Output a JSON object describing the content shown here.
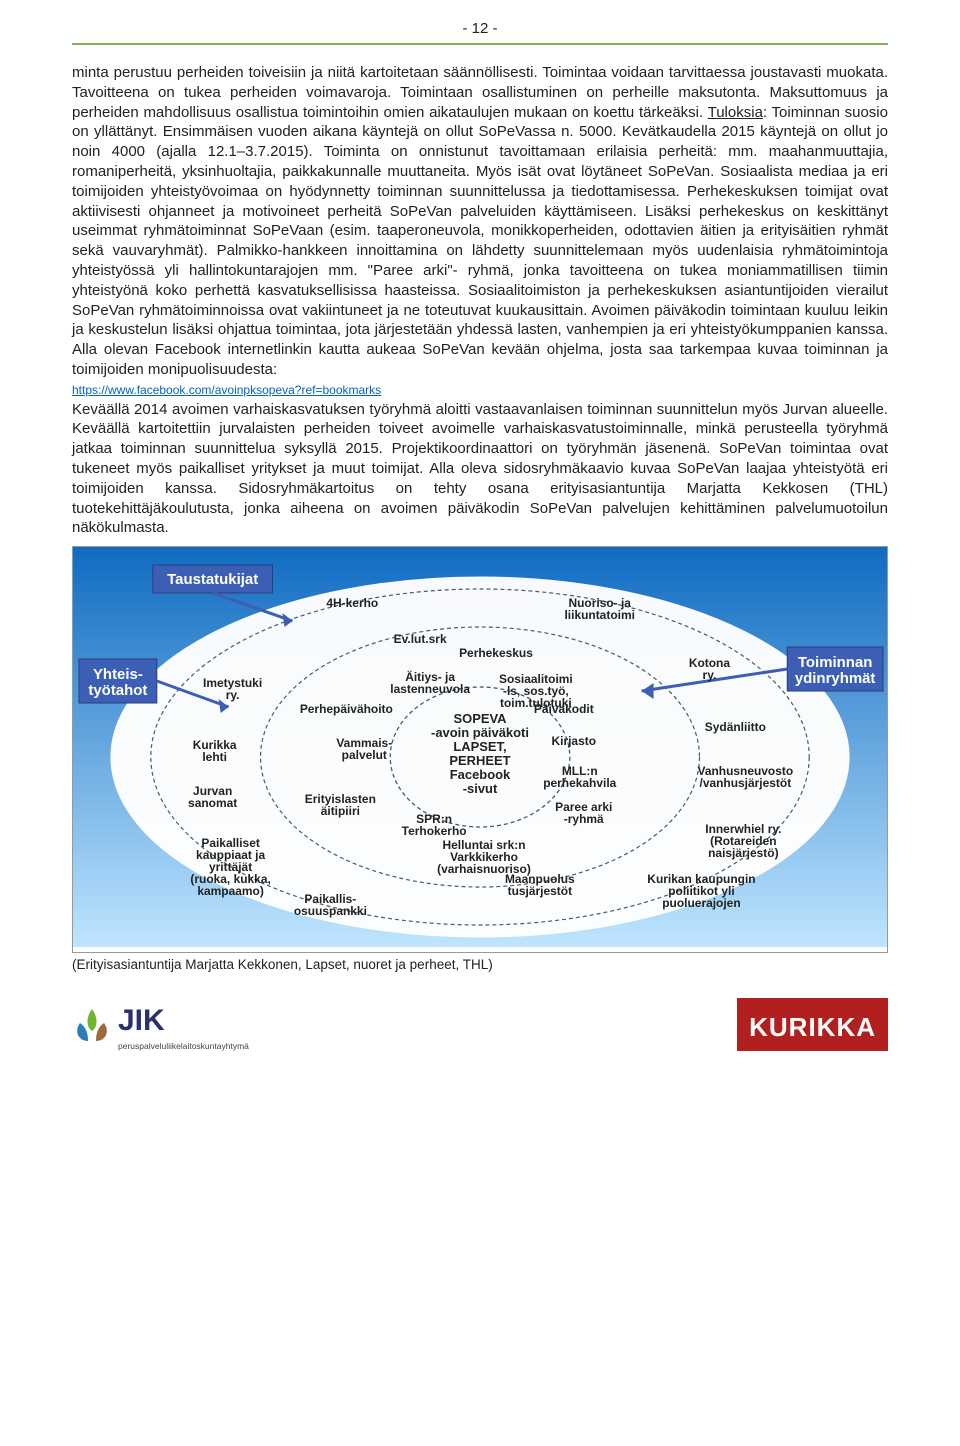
{
  "page_number": "- 12 -",
  "hr_color": "#7fb24a",
  "paragraph1": "minta perustuu perheiden toiveisiin ja niitä kartoitetaan säännöllisesti. Toimintaa voidaan tarvittaessa joustavasti muokata. Tavoitteena on tukea perheiden voimavaroja. Toimintaan osallistuminen on perheille maksutonta. Maksuttomuus ja perheiden mahdollisuus osallistua toimintoihin omien aikataulujen mukaan on koettu tärkeäksi. ",
  "tuloksia_label": "Tuloksia",
  "paragraph1b": ": Toiminnan suosio on yllättänyt. Ensimmäisen vuoden aikana käyntejä on ollut SoPeVassa n. 5000. Kevätkaudella 2015 käyntejä on ollut jo noin 4000 (ajalla 12.1–3.7.2015). Toiminta on onnistunut tavoittamaan erilaisia perheitä: mm. maahanmuuttajia, romaniperheitä, yksinhuoltajia, paikkakunnalle muuttaneita. Myös isät ovat löytäneet SoPeVan. Sosiaalista mediaa ja eri toimijoiden yhteistyövoimaa on hyödynnetty toiminnan suunnittelussa ja tiedottamisessa. Perhekeskuksen toimijat ovat aktiivisesti ohjanneet ja motivoineet perheitä SoPeVan palveluiden käyttämiseen. Lisäksi perhekeskus on keskittänyt useimmat ryhmätoiminnat SoPeVaan (esim. taaperoneuvola, monikkoperheiden, odottavien äitien ja erityisäitien ryhmät sekä vauvaryhmät).  Palmikko-hankkeen innoittamina on lähdetty suunnittelemaan myös uudenlaisia ryhmätoimintoja yhteistyössä yli hallintokuntarajojen mm. \"Paree arki\"- ryhmä, jonka tavoitteena on tukea moniammatillisen tiimin yhteistyönä koko perhettä kasvatuksellisissa haasteissa. Sosiaalitoimiston ja perhekeskuksen asiantuntijoiden vierailut SoPeVan ryhmätoiminnoissa ovat vakiintuneet ja ne toteutuvat kuukausittain. Avoimen päiväkodin toimintaan kuuluu leikin ja keskustelun lisäksi ohjattua toimintaa, jota järjestetään yhdessä lasten, vanhempien ja eri yhteistyökumppanien kanssa. Alla olevan Facebook internetlinkin kautta aukeaa SoPeVan kevään ohjelma, josta saa tarkempaa kuvaa toiminnan ja toimijoiden monipuolisuudesta:",
  "link_text": "https://www.facebook.com/avoinpksopeva?ref=bookmarks",
  "paragraph2": "Keväällä 2014 avoimen varhaiskasvatuksen työryhmä aloitti vastaavanlaisen toiminnan suunnittelun myös Jurvan alueelle. Keväällä kartoitettiin jurvalaisten perheiden toiveet avoimelle varhaiskasvatustoiminnalle, minkä perusteella työryhmä jatkaa toiminnan suunnittelua syksyllä 2015. Projektikoordinaattori on työryhmän jäsenenä. SoPeVan toimintaa ovat tukeneet myös paikalliset yritykset ja muut toimijat. Alla oleva sidosryhmäkaavio kuvaa SoPeVan laajaa yhteistyötä eri toimijoiden kanssa. Sidosryhmäkartoitus on tehty osana erityisasiantuntija Marjatta Kekkosen (THL) tuotekehittäjäkoulutusta, jonka aiheena on avoimen päiväkodin SoPeVan palvelujen kehittäminen palvelumuotoilun näkökulmasta.",
  "caption": "(Erityisasiantuntija Marjatta Kekkonen, Lapset, nuoret ja perheet, THL)",
  "jik_sub": "peruspalveluliikelaitoskuntayhtymä",
  "kurikka": "KURIKKA",
  "diagram": {
    "bg_gradient_top": "#0f6bc1",
    "bg_gradient_bot": "#bfe5ff",
    "box_tausta": "Taustatukijat",
    "box_yhteis": "Yhteis-\ntyötahot",
    "box_ydin": "Toiminnan\nydinryhmät",
    "box_fill": "#3c5fb5",
    "box_text": "#ffffff",
    "ring_color": "#4a5a6a",
    "label_color": "#222",
    "label_font": 13,
    "center_lines": [
      "SOPEVA",
      "-avoin päiväkoti",
      "LAPSET,",
      "PERHEET",
      "Facebook",
      "-sivut"
    ],
    "ring2": [
      "Ev.lut.srk",
      "Perhekeskus",
      "Äitiys- ja\nlastenneuvola",
      "Perhepäivähoito",
      "Vammais-\npalvelut",
      "Erityislasten\näitipiiri",
      "SPR:n\nTerhokerho",
      "Helluntai srk:n\nVarkkikerho\n(varhaisnuoriso)",
      "Maanpuolus\ntusjärjestöt",
      "Paree arki\n-ryhmä",
      "MLL:n\nperhekahvila",
      "Kirjasto",
      "Päiväkodit",
      "Sosiaalitoimi\n-ls, sos.työ,\ntoim.tulotuki"
    ],
    "ring3_left": [
      "4H-kerho",
      "Imetystuki\nry.",
      "Kurikka\nlehti",
      "Jurvan\nsanomat",
      "Paikalliset\nkauppiaat ja\nyrittäjät\n(ruoka, kukka,\nkampaamo)",
      "Paikallis-\nosuuspankki"
    ],
    "ring3_right": [
      "Nuoriso- ja\nliikuntatoimi",
      "Kotona\nry.",
      "Sydänliitto",
      "Vanhusneuvosto\n/vanhusjärjestöt",
      "Innerwhiel ry.\n(Rotareiden\nnaisjärjestö)",
      "Kurikan kaupungin\npoliitikot yli\npuoluerajojen"
    ]
  }
}
